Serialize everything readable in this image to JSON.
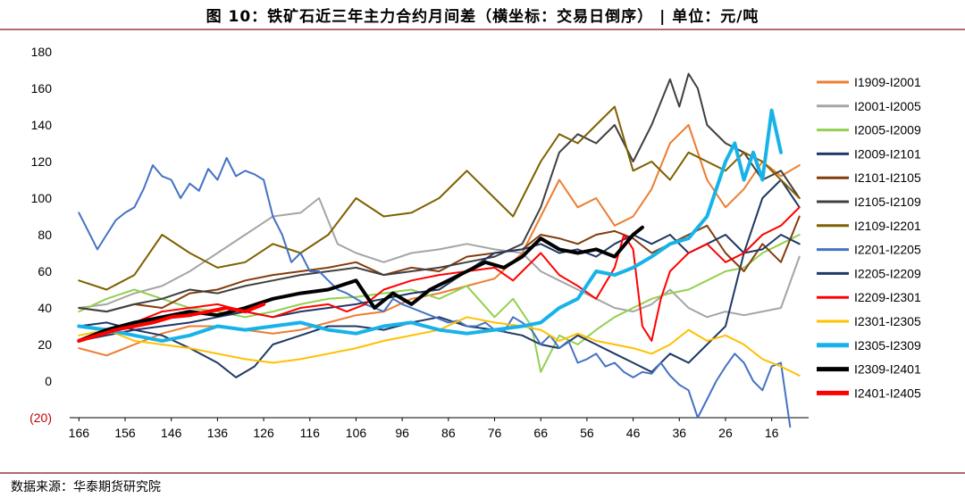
{
  "header": {
    "title": "图 10：铁矿石近三年主力合约月间差（横坐标：交易日倒序） | 单位：元/吨"
  },
  "footer": {
    "source": "数据来源：华泰期货研究院"
  },
  "chart_data": {
    "type": "line",
    "title": "图 10：铁矿石近三年主力合约月间差（横坐标：交易日倒序） | 单位：元/吨",
    "xlabel": "",
    "ylabel": "",
    "x_reversed": true,
    "xlim": [
      168,
      8
    ],
    "ylim": [
      -20,
      180
    ],
    "x_ticks": [
      "166",
      "156",
      "146",
      "136",
      "126",
      "116",
      "106",
      "96",
      "86",
      "76",
      "66",
      "56",
      "46",
      "36",
      "26",
      "16"
    ],
    "y_ticks": [
      "(20)",
      "0",
      "20",
      "40",
      "60",
      "80",
      "100",
      "120",
      "140",
      "160",
      "180"
    ],
    "legend_position": "right",
    "series": [
      {
        "name": "I1909-I2001",
        "color": "#ed7d31",
        "width": 2,
        "x": [
          166,
          160,
          154,
          148,
          142,
          136,
          130,
          124,
          118,
          112,
          106,
          100,
          94,
          88,
          82,
          76,
          70,
          66,
          62,
          58,
          54,
          50,
          46,
          42,
          38,
          34,
          30,
          26,
          22,
          18,
          14,
          10
        ],
        "y": [
          18,
          14,
          20,
          26,
          30,
          30,
          28,
          26,
          28,
          32,
          36,
          38,
          45,
          48,
          52,
          56,
          70,
          90,
          110,
          95,
          100,
          85,
          90,
          105,
          130,
          140,
          110,
          95,
          105,
          120,
          112,
          118
        ]
      },
      {
        "name": "I2001-I2005",
        "color": "#a5a5a5",
        "width": 2,
        "x": [
          166,
          160,
          154,
          148,
          142,
          136,
          130,
          124,
          118,
          114,
          110,
          106,
          100,
          94,
          88,
          82,
          76,
          70,
          66,
          62,
          58,
          54,
          50,
          46,
          42,
          38,
          34,
          30,
          26,
          22,
          18,
          14,
          10
        ],
        "y": [
          40,
          42,
          48,
          52,
          60,
          70,
          80,
          90,
          92,
          100,
          75,
          70,
          65,
          70,
          72,
          75,
          72,
          70,
          60,
          55,
          50,
          45,
          40,
          38,
          42,
          50,
          40,
          35,
          38,
          36,
          38,
          40,
          68
        ]
      },
      {
        "name": "I2005-I2009",
        "color": "#92d050",
        "width": 2,
        "x": [
          166,
          160,
          154,
          148,
          142,
          136,
          130,
          124,
          118,
          112,
          106,
          100,
          94,
          88,
          82,
          76,
          72,
          68,
          66,
          62,
          58,
          54,
          50,
          46,
          42,
          38,
          34,
          30,
          26,
          22,
          18,
          14,
          10
        ],
        "y": [
          38,
          45,
          50,
          45,
          40,
          38,
          35,
          38,
          42,
          45,
          46,
          48,
          50,
          45,
          52,
          35,
          45,
          30,
          5,
          25,
          20,
          28,
          35,
          40,
          45,
          48,
          50,
          55,
          60,
          62,
          70,
          75,
          80
        ]
      },
      {
        "name": "I2009-I2101",
        "color": "#203864",
        "width": 2,
        "x": [
          166,
          160,
          154,
          148,
          142,
          136,
          132,
          128,
          124,
          118,
          112,
          106,
          100,
          94,
          88,
          82,
          76,
          70,
          66,
          62,
          58,
          54,
          50,
          46,
          42,
          38,
          34,
          30,
          26,
          22,
          18,
          14,
          10
        ],
        "y": [
          30,
          32,
          28,
          25,
          18,
          10,
          2,
          8,
          20,
          25,
          30,
          30,
          28,
          32,
          35,
          30,
          28,
          25,
          20,
          18,
          25,
          20,
          15,
          10,
          5,
          15,
          10,
          20,
          30,
          70,
          100,
          110,
          95
        ]
      },
      {
        "name": "I2101-I2105",
        "color": "#843c0c",
        "width": 2,
        "x": [
          166,
          160,
          154,
          148,
          142,
          136,
          130,
          124,
          118,
          112,
          106,
          100,
          94,
          88,
          82,
          76,
          70,
          66,
          62,
          58,
          54,
          50,
          46,
          42,
          38,
          34,
          30,
          26,
          22,
          18,
          14,
          10
        ],
        "y": [
          40,
          38,
          42,
          40,
          48,
          50,
          55,
          58,
          60,
          62,
          65,
          58,
          62,
          60,
          68,
          70,
          72,
          80,
          78,
          75,
          80,
          82,
          78,
          70,
          75,
          80,
          85,
          70,
          60,
          75,
          65,
          90
        ]
      },
      {
        "name": "I2105-I2109",
        "color": "#404040",
        "width": 2,
        "x": [
          166,
          160,
          154,
          148,
          142,
          136,
          130,
          124,
          118,
          112,
          106,
          100,
          94,
          88,
          82,
          76,
          70,
          66,
          62,
          58,
          54,
          50,
          46,
          42,
          38,
          36,
          34,
          32,
          30,
          26,
          22,
          18,
          14,
          10
        ],
        "y": [
          40,
          38,
          42,
          45,
          50,
          48,
          52,
          55,
          58,
          60,
          62,
          58,
          60,
          62,
          65,
          68,
          75,
          95,
          125,
          135,
          130,
          140,
          120,
          140,
          165,
          150,
          168,
          160,
          140,
          130,
          125,
          110,
          115,
          100
        ]
      },
      {
        "name": "I2109-I2201",
        "color": "#7f6000",
        "width": 2,
        "x": [
          166,
          160,
          154,
          148,
          142,
          136,
          130,
          124,
          118,
          112,
          106,
          100,
          94,
          88,
          82,
          76,
          72,
          66,
          62,
          58,
          54,
          50,
          46,
          42,
          38,
          34,
          30,
          26,
          22,
          18,
          14,
          10
        ],
        "y": [
          55,
          50,
          58,
          80,
          70,
          62,
          65,
          75,
          70,
          80,
          100,
          90,
          92,
          100,
          115,
          100,
          90,
          120,
          135,
          130,
          140,
          150,
          115,
          120,
          110,
          125,
          120,
          115,
          125,
          120,
          110,
          100
        ]
      },
      {
        "name": "I2201-I2205",
        "color": "#4472c4",
        "width": 2,
        "x": [
          166,
          164,
          162,
          160,
          158,
          156,
          154,
          152,
          150,
          148,
          146,
          144,
          142,
          140,
          138,
          136,
          134,
          132,
          130,
          128,
          126,
          124,
          122,
          120,
          118,
          116,
          114,
          112,
          110,
          108,
          106,
          104,
          102,
          100,
          98,
          96,
          94,
          92,
          90,
          88,
          86,
          84,
          82,
          80,
          78,
          76,
          74,
          72,
          70,
          68,
          66,
          64,
          62,
          60,
          58,
          56,
          54,
          52,
          50,
          48,
          46,
          44,
          42,
          40,
          38,
          36,
          34,
          32,
          30,
          28,
          26,
          24,
          22,
          20,
          18,
          16,
          14,
          12
        ],
        "y": [
          92,
          82,
          72,
          80,
          88,
          92,
          95,
          105,
          118,
          112,
          110,
          100,
          108,
          104,
          116,
          110,
          122,
          112,
          115,
          113,
          110,
          90,
          80,
          65,
          70,
          60,
          60,
          55,
          50,
          48,
          45,
          42,
          40,
          38,
          45,
          42,
          40,
          38,
          36,
          34,
          32,
          33,
          30,
          30,
          32,
          28,
          27,
          35,
          32,
          28,
          20,
          25,
          18,
          22,
          10,
          12,
          15,
          8,
          10,
          5,
          2,
          5,
          4,
          10,
          3,
          -2,
          -5,
          -20,
          -10,
          0,
          8,
          15,
          10,
          0,
          -5,
          8,
          10,
          -25
        ]
      },
      {
        "name": "I2205-I2209",
        "color": "#1f3864",
        "width": 2,
        "x": [
          166,
          160,
          154,
          148,
          142,
          136,
          130,
          124,
          118,
          112,
          106,
          100,
          94,
          88,
          82,
          76,
          70,
          66,
          62,
          58,
          54,
          50,
          46,
          42,
          38,
          34,
          30,
          26,
          22,
          18,
          14,
          10
        ],
        "y": [
          22,
          25,
          28,
          30,
          32,
          35,
          38,
          35,
          38,
          40,
          42,
          45,
          48,
          50,
          60,
          70,
          72,
          75,
          70,
          72,
          68,
          75,
          80,
          75,
          80,
          70,
          75,
          80,
          70,
          72,
          80,
          75
        ]
      },
      {
        "name": "I2209-I2301",
        "color": "#ff0000",
        "width": 2,
        "x": [
          166,
          160,
          154,
          148,
          142,
          136,
          130,
          124,
          118,
          112,
          108,
          104,
          100,
          94,
          88,
          82,
          76,
          72,
          70,
          66,
          62,
          58,
          54,
          50,
          48,
          46,
          44,
          42,
          40,
          38,
          34,
          30,
          26,
          22,
          18,
          14,
          10
        ],
        "y": [
          22,
          28,
          32,
          38,
          40,
          42,
          38,
          35,
          40,
          42,
          38,
          42,
          50,
          55,
          58,
          60,
          62,
          55,
          60,
          70,
          58,
          52,
          45,
          62,
          80,
          72,
          30,
          22,
          45,
          60,
          70,
          75,
          65,
          70,
          80,
          85,
          95
        ]
      },
      {
        "name": "I2301-I2305",
        "color": "#ffc000",
        "width": 2,
        "x": [
          166,
          160,
          154,
          148,
          142,
          136,
          130,
          124,
          118,
          112,
          106,
          100,
          94,
          88,
          82,
          76,
          70,
          66,
          62,
          58,
          54,
          50,
          46,
          42,
          38,
          34,
          30,
          26,
          22,
          18,
          14,
          10
        ],
        "y": [
          25,
          28,
          22,
          20,
          18,
          15,
          12,
          10,
          12,
          15,
          18,
          22,
          25,
          28,
          35,
          32,
          30,
          28,
          22,
          26,
          22,
          20,
          18,
          15,
          20,
          28,
          22,
          25,
          20,
          12,
          8,
          3
        ]
      },
      {
        "name": "I2305-I2309",
        "color": "#17b3e8",
        "width": 4,
        "x": [
          166,
          160,
          154,
          148,
          142,
          136,
          130,
          124,
          118,
          112,
          106,
          100,
          94,
          88,
          82,
          76,
          70,
          66,
          62,
          58,
          54,
          50,
          46,
          42,
          38,
          34,
          30,
          26,
          24,
          22,
          20,
          18,
          16,
          14
        ],
        "y": [
          30,
          28,
          25,
          22,
          25,
          30,
          28,
          30,
          32,
          28,
          26,
          30,
          32,
          28,
          26,
          28,
          30,
          32,
          40,
          45,
          60,
          58,
          62,
          68,
          75,
          78,
          90,
          120,
          130,
          110,
          125,
          110,
          148,
          125
        ]
      },
      {
        "name": "I2309-I2401",
        "color": "#000000",
        "width": 4,
        "x": [
          166,
          160,
          154,
          148,
          142,
          136,
          130,
          124,
          118,
          112,
          106,
          102,
          98,
          94,
          90,
          86,
          82,
          78,
          74,
          70,
          66,
          62,
          58,
          54,
          50,
          46,
          44
        ],
        "y": [
          22,
          28,
          32,
          35,
          38,
          36,
          40,
          45,
          48,
          50,
          55,
          40,
          48,
          42,
          50,
          55,
          60,
          65,
          62,
          68,
          78,
          72,
          70,
          72,
          68,
          80,
          84
        ]
      },
      {
        "name": "I2401-I2405",
        "color": "#ff0000",
        "width": 4,
        "x": [
          166,
          162,
          158,
          154,
          150,
          146,
          142,
          138,
          134,
          130,
          126
        ],
        "y": [
          22,
          25,
          28,
          30,
          32,
          35,
          36,
          38,
          40,
          38,
          42
        ]
      }
    ]
  }
}
